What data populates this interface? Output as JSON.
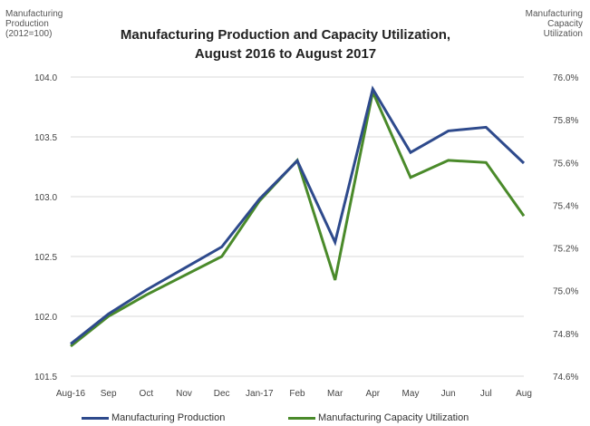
{
  "chart_data": {
    "type": "line",
    "title": "Manufacturing Production and Capacity Utilization, August 2016 to August 2017",
    "ylabel_left": "Manufacturing\nProduction\n(2012=100)",
    "ylabel_right": "Manufacturing\nCapacity\nUtilization",
    "categories": [
      "Aug-16",
      "Sep",
      "Oct",
      "Nov",
      "Dec",
      "Jan-17",
      "Feb",
      "Mar",
      "Apr",
      "May",
      "Jun",
      "Jul",
      "Aug"
    ],
    "left_axis": {
      "min": 101.5,
      "max": 104.0,
      "ticks": [
        "101.5",
        "102.0",
        "102.5",
        "103.0",
        "103.5",
        "104.0"
      ]
    },
    "right_axis": {
      "min": 74.6,
      "max": 76.0,
      "ticks": [
        "74.6%",
        "74.8%",
        "75.0%",
        "75.2%",
        "75.4%",
        "75.6%",
        "75.8%",
        "76.0%"
      ]
    },
    "grid": "horizontal",
    "legend_position": "bottom",
    "series": [
      {
        "name": "Manufacturing Production",
        "axis": "left",
        "color": "#2e4a8c",
        "values": [
          101.77,
          102.02,
          102.22,
          102.4,
          102.58,
          102.98,
          103.3,
          102.62,
          103.9,
          103.37,
          103.55,
          103.58,
          103.28
        ]
      },
      {
        "name": "Manufacturing Capacity Utilization",
        "axis": "right",
        "color": "#4a8a2a",
        "values": [
          74.74,
          74.88,
          74.98,
          75.07,
          75.16,
          75.42,
          75.61,
          75.05,
          75.93,
          75.53,
          75.61,
          75.6,
          75.35
        ]
      }
    ]
  }
}
